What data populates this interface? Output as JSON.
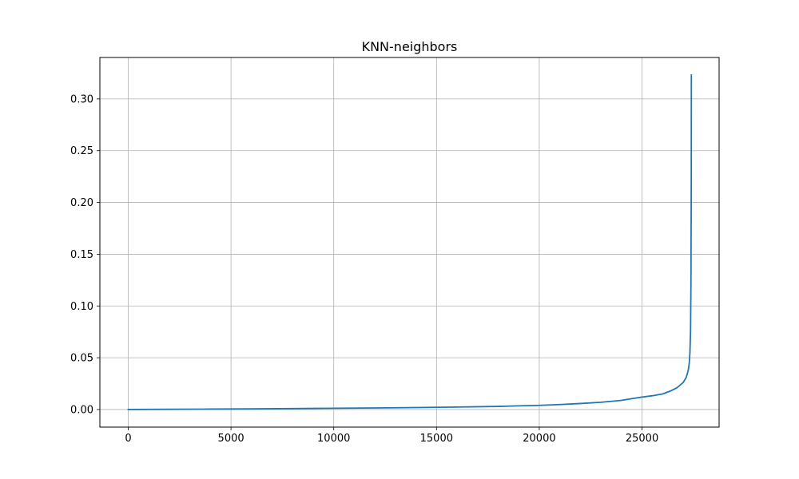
{
  "chart_data": {
    "type": "line",
    "title": "KNN-neighbors",
    "xlabel": "",
    "ylabel": "",
    "xlim": [
      -1380,
      28750
    ],
    "ylim": [
      -0.017,
      0.34
    ],
    "grid": true,
    "x_ticks": [
      0,
      5000,
      10000,
      15000,
      20000,
      25000
    ],
    "x_tick_labels": [
      "0",
      "5000",
      "10000",
      "15000",
      "20000",
      "25000"
    ],
    "y_ticks": [
      0.0,
      0.05,
      0.1,
      0.15,
      0.2,
      0.25,
      0.3
    ],
    "y_tick_labels": [
      "0.00",
      "0.05",
      "0.10",
      "0.15",
      "0.20",
      "0.25",
      "0.30"
    ],
    "series": [
      {
        "color": "#1f77b4",
        "x": [
          0,
          2000,
          4000,
          6000,
          8000,
          10000,
          12000,
          14000,
          16000,
          18000,
          19000,
          20000,
          21000,
          22000,
          23000,
          24000,
          24500,
          25000,
          25500,
          26000,
          26400,
          26700,
          27000,
          27150,
          27250,
          27300,
          27330,
          27360,
          27380,
          27395,
          27400
        ],
        "values": [
          0.0,
          0.0002,
          0.0004,
          0.0006,
          0.0009,
          0.0012,
          0.0015,
          0.0019,
          0.0024,
          0.003,
          0.0035,
          0.004,
          0.0048,
          0.0058,
          0.007,
          0.0088,
          0.0105,
          0.012,
          0.0133,
          0.015,
          0.018,
          0.021,
          0.026,
          0.031,
          0.038,
          0.045,
          0.055,
          0.075,
          0.12,
          0.22,
          0.323
        ]
      }
    ]
  }
}
